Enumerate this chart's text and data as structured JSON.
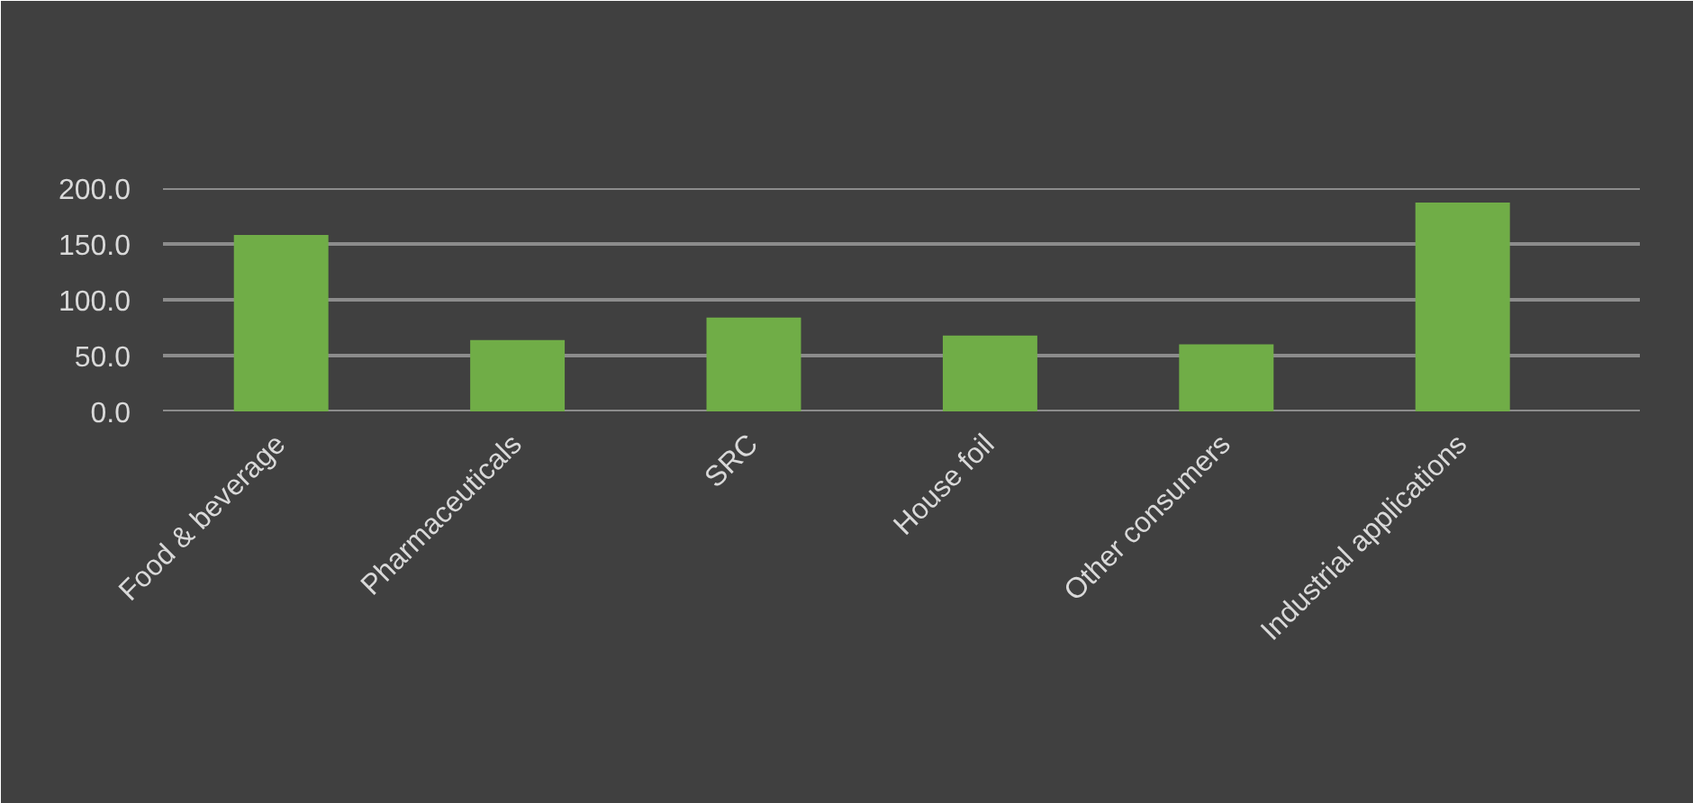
{
  "chart_data": {
    "type": "bar",
    "categories": [
      "Food & beverage",
      "Pharmaceuticals",
      "SRC",
      "House foil",
      "Other consumers",
      "Industrial applications"
    ],
    "values": [
      158,
      64,
      84,
      68,
      60,
      187
    ],
    "color": "#70ad47",
    "ylim": [
      0,
      200
    ],
    "yticks": [
      {
        "value": 0,
        "label": "0.0"
      },
      {
        "value": 50,
        "label": "50.0"
      },
      {
        "value": 100,
        "label": "100.0"
      },
      {
        "value": 150,
        "label": "150.0"
      },
      {
        "value": 200,
        "label": "200.0"
      }
    ],
    "grid": "y"
  }
}
